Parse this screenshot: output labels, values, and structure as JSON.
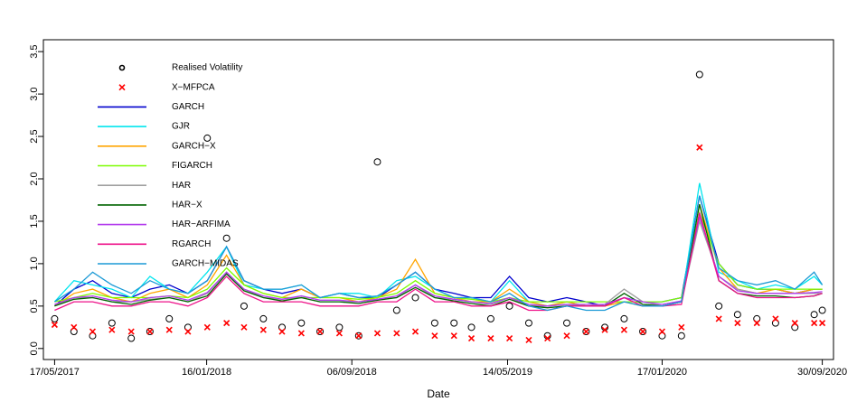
{
  "chart_data": {
    "type": "line",
    "x_label": "Date",
    "x": [
      "2017-05-17",
      "2017-06-17",
      "2017-07-17",
      "2017-08-17",
      "2017-09-17",
      "2017-10-17",
      "2017-11-17",
      "2017-12-17",
      "2018-01-17",
      "2018-02-17",
      "2018-03-17",
      "2018-04-17",
      "2018-05-17",
      "2018-06-17",
      "2018-07-17",
      "2018-08-17",
      "2018-09-17",
      "2018-10-17",
      "2018-11-17",
      "2018-12-17",
      "2019-01-17",
      "2019-02-17",
      "2019-03-17",
      "2019-04-17",
      "2019-05-17",
      "2019-06-17",
      "2019-07-17",
      "2019-08-17",
      "2019-09-17",
      "2019-10-17",
      "2019-11-17",
      "2019-12-17",
      "2020-01-17",
      "2020-02-17",
      "2020-03-17",
      "2020-04-17",
      "2020-05-17",
      "2020-06-17",
      "2020-07-17",
      "2020-08-17",
      "2020-09-17",
      "2020-09-30"
    ],
    "xlim": [
      "2017-04-29",
      "2020-10-18"
    ],
    "xticks": [
      {
        "value": "2017-05-17",
        "label": "17/05/2017"
      },
      {
        "value": "2018-01-16",
        "label": "16/01/2018"
      },
      {
        "value": "2018-09-06",
        "label": "06/09/2018"
      },
      {
        "value": "2019-05-14",
        "label": "14/05/2019"
      },
      {
        "value": "2020-01-17",
        "label": "17/01/2020"
      },
      {
        "value": "2020-09-30",
        "label": "30/09/2020"
      }
    ],
    "ylim": [
      -0.13,
      3.64
    ],
    "yticks": [
      {
        "value": 0,
        "label": "0.0"
      },
      0.5,
      {
        "value": 1,
        "label": "1.0"
      },
      1.5,
      {
        "value": 2,
        "label": "2.0"
      },
      2.5,
      {
        "value": 3,
        "label": "3.0"
      },
      3.5
    ],
    "series": [
      {
        "name": "Realised Volatility",
        "type": "scatter",
        "marker": "circle",
        "color": "#000000",
        "values": [
          0.35,
          0.2,
          0.15,
          0.3,
          0.12,
          0.2,
          0.35,
          0.25,
          2.48,
          1.3,
          0.5,
          0.35,
          0.25,
          0.3,
          0.2,
          0.25,
          0.15,
          2.2,
          0.45,
          0.6,
          0.3,
          0.3,
          0.25,
          0.35,
          0.5,
          0.3,
          0.15,
          0.3,
          0.2,
          0.25,
          0.35,
          0.2,
          0.15,
          0.15,
          3.23,
          0.5,
          0.4,
          0.35,
          0.3,
          0.25,
          0.4,
          0.45
        ]
      },
      {
        "name": "X−MFPCA",
        "type": "scatter",
        "marker": "cross",
        "color": "#ff0000",
        "values": [
          0.28,
          0.25,
          0.2,
          0.22,
          0.2,
          0.2,
          0.22,
          0.2,
          0.25,
          0.3,
          0.25,
          0.22,
          0.2,
          0.18,
          0.2,
          0.18,
          0.15,
          0.18,
          0.18,
          0.2,
          0.15,
          0.15,
          0.12,
          0.12,
          0.12,
          0.1,
          0.12,
          0.15,
          0.2,
          0.22,
          0.22,
          0.2,
          0.2,
          0.25,
          2.37,
          0.35,
          0.3,
          0.3,
          0.35,
          0.3,
          0.3,
          0.3
        ]
      },
      {
        "name": "GARCH",
        "type": "line",
        "color": "#0000cd",
        "values": [
          0.5,
          0.7,
          0.8,
          0.65,
          0.6,
          0.7,
          0.75,
          0.65,
          0.8,
          1.2,
          0.8,
          0.7,
          0.65,
          0.7,
          0.6,
          0.65,
          0.6,
          0.6,
          0.75,
          0.9,
          0.7,
          0.65,
          0.6,
          0.6,
          0.85,
          0.6,
          0.55,
          0.6,
          0.55,
          0.5,
          0.6,
          0.55,
          0.55,
          0.6,
          1.8,
          1.0,
          0.75,
          0.7,
          0.7,
          0.65,
          0.7,
          0.7
        ]
      },
      {
        "name": "GJR",
        "type": "line",
        "color": "#00e5ee",
        "values": [
          0.55,
          0.8,
          0.75,
          0.7,
          0.6,
          0.85,
          0.7,
          0.65,
          0.9,
          1.2,
          0.75,
          0.7,
          0.7,
          0.75,
          0.6,
          0.65,
          0.65,
          0.6,
          0.8,
          0.85,
          0.7,
          0.6,
          0.6,
          0.55,
          0.8,
          0.55,
          0.5,
          0.55,
          0.5,
          0.5,
          0.6,
          0.55,
          0.5,
          0.55,
          1.95,
          0.9,
          0.8,
          0.7,
          0.75,
          0.7,
          0.85,
          0.75
        ]
      },
      {
        "name": "GARCH−X",
        "type": "line",
        "color": "#ffa500",
        "values": [
          0.5,
          0.65,
          0.7,
          0.6,
          0.55,
          0.65,
          0.7,
          0.6,
          0.75,
          1.1,
          0.75,
          0.65,
          0.6,
          0.7,
          0.6,
          0.6,
          0.55,
          0.6,
          0.7,
          1.05,
          0.65,
          0.6,
          0.55,
          0.55,
          0.7,
          0.55,
          0.5,
          0.55,
          0.5,
          0.5,
          0.55,
          0.5,
          0.5,
          0.55,
          1.7,
          0.95,
          0.7,
          0.65,
          0.7,
          0.65,
          0.7,
          0.7
        ]
      },
      {
        "name": "FIGARCH",
        "type": "line",
        "color": "#7cfc00",
        "values": [
          0.55,
          0.6,
          0.65,
          0.6,
          0.6,
          0.6,
          0.62,
          0.6,
          0.7,
          0.95,
          0.75,
          0.65,
          0.6,
          0.6,
          0.6,
          0.6,
          0.58,
          0.6,
          0.65,
          0.8,
          0.65,
          0.6,
          0.58,
          0.55,
          0.6,
          0.55,
          0.55,
          0.55,
          0.55,
          0.55,
          0.55,
          0.55,
          0.55,
          0.6,
          1.6,
          1.0,
          0.75,
          0.7,
          0.7,
          0.7,
          0.7,
          0.7
        ]
      },
      {
        "name": "HAR",
        "type": "line",
        "color": "#a0a0a0",
        "values": [
          0.5,
          0.6,
          0.6,
          0.55,
          0.55,
          0.58,
          0.6,
          0.55,
          0.65,
          0.9,
          0.7,
          0.6,
          0.58,
          0.6,
          0.55,
          0.55,
          0.55,
          0.58,
          0.6,
          0.75,
          0.6,
          0.58,
          0.55,
          0.52,
          0.6,
          0.5,
          0.5,
          0.52,
          0.5,
          0.52,
          0.7,
          0.55,
          0.5,
          0.55,
          1.5,
          0.85,
          0.7,
          0.65,
          0.65,
          0.65,
          0.65,
          0.65
        ]
      },
      {
        "name": "HAR−X",
        "type": "line",
        "color": "#006400",
        "values": [
          0.5,
          0.58,
          0.6,
          0.55,
          0.52,
          0.57,
          0.6,
          0.55,
          0.62,
          0.88,
          0.68,
          0.6,
          0.56,
          0.6,
          0.55,
          0.55,
          0.53,
          0.57,
          0.6,
          0.72,
          0.6,
          0.56,
          0.53,
          0.5,
          0.58,
          0.5,
          0.48,
          0.5,
          0.5,
          0.5,
          0.65,
          0.52,
          0.5,
          0.55,
          1.7,
          0.8,
          0.65,
          0.62,
          0.62,
          0.6,
          0.62,
          0.65
        ]
      },
      {
        "name": "HAR−ARFIMA",
        "type": "line",
        "color": "#b23aee",
        "values": [
          0.52,
          0.6,
          0.62,
          0.57,
          0.55,
          0.6,
          0.62,
          0.57,
          0.66,
          0.9,
          0.7,
          0.62,
          0.58,
          0.62,
          0.57,
          0.57,
          0.55,
          0.58,
          0.62,
          0.75,
          0.62,
          0.58,
          0.55,
          0.53,
          0.6,
          0.52,
          0.5,
          0.52,
          0.52,
          0.52,
          0.6,
          0.55,
          0.52,
          0.56,
          1.55,
          0.85,
          0.68,
          0.65,
          0.65,
          0.65,
          0.66,
          0.67
        ]
      },
      {
        "name": "RGARCH",
        "type": "line",
        "color": "#ee1289",
        "values": [
          0.45,
          0.55,
          0.55,
          0.5,
          0.5,
          0.55,
          0.55,
          0.5,
          0.6,
          0.85,
          0.65,
          0.55,
          0.55,
          0.55,
          0.5,
          0.5,
          0.5,
          0.55,
          0.55,
          0.7,
          0.55,
          0.55,
          0.5,
          0.5,
          0.55,
          0.45,
          0.45,
          0.5,
          0.5,
          0.5,
          0.6,
          0.5,
          0.5,
          0.52,
          1.6,
          0.8,
          0.65,
          0.6,
          0.6,
          0.6,
          0.62,
          0.65
        ]
      },
      {
        "name": "GARCH−MIDAS",
        "type": "line",
        "color": "#1c9ad6",
        "values": [
          0.55,
          0.7,
          0.9,
          0.75,
          0.65,
          0.8,
          0.7,
          0.65,
          0.8,
          1.2,
          0.8,
          0.7,
          0.7,
          0.75,
          0.6,
          0.65,
          0.6,
          0.62,
          0.75,
          0.9,
          0.7,
          0.6,
          0.6,
          0.55,
          0.65,
          0.5,
          0.45,
          0.5,
          0.45,
          0.45,
          0.55,
          0.5,
          0.5,
          0.55,
          1.8,
          0.95,
          0.8,
          0.75,
          0.8,
          0.7,
          0.9,
          0.75
        ]
      }
    ]
  }
}
